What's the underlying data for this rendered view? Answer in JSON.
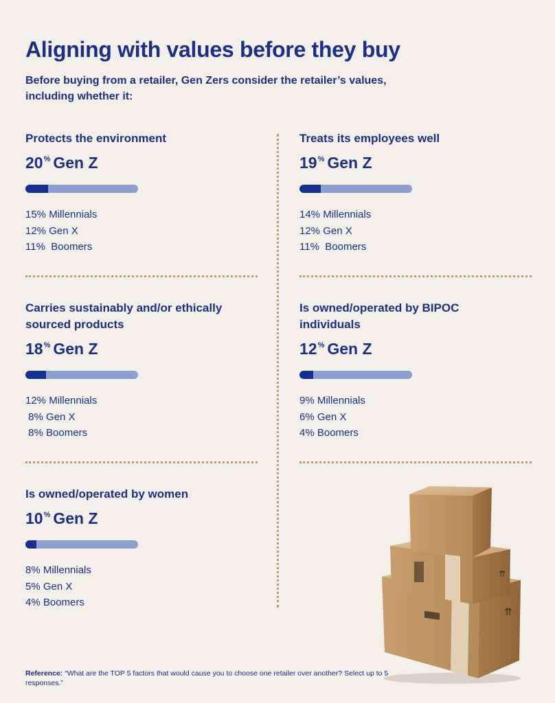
{
  "title": "Aligning with values before they buy",
  "subtitle": "Before buying from a retailer, Gen Zers consider the retailer’s values, including whether it:",
  "reference": {
    "label": "Reference:",
    "text": "“What are the TOP 5 factors that would cause you to choose one retailer over another? Select up to 5 responses.”"
  },
  "colors": {
    "text": "#1b2f87",
    "bar_fill": "#142f8c",
    "bar_track": "#8c9fcf",
    "dots": "#c49a74",
    "background": "#f3efea"
  },
  "chart_data": {
    "type": "bar",
    "title": "Aligning with values before they buy",
    "groups": [
      "Gen Z",
      "Millennials",
      "Gen X",
      "Boomers"
    ],
    "categories": [
      {
        "label": "Protects the environment",
        "genz_value": "20",
        "genz_unit": "%",
        "genz_label": "Gen Z",
        "values": {
          "Gen Z": 20,
          "Millennials": 15,
          "Gen X": 12,
          "Boomers": 11
        },
        "others": [
          {
            "pct": "15%",
            "name": "Millennials"
          },
          {
            "pct": "12%",
            "name": "Gen X"
          },
          {
            "pct": "11%",
            "name": "Boomers"
          }
        ]
      },
      {
        "label": "Treats its employees well",
        "genz_value": "19",
        "genz_unit": "%",
        "genz_label": "Gen Z",
        "values": {
          "Gen Z": 19,
          "Millennials": 14,
          "Gen X": 12,
          "Boomers": 11
        },
        "others": [
          {
            "pct": "14%",
            "name": "Millennials"
          },
          {
            "pct": "12%",
            "name": "Gen X"
          },
          {
            "pct": "11%",
            "name": "Boomers"
          }
        ]
      },
      {
        "label": "Carries sustainably and/or ethically sourced products",
        "genz_value": "18",
        "genz_unit": "%",
        "genz_label": "Gen Z",
        "values": {
          "Gen Z": 18,
          "Millennials": 12,
          "Gen X": 8,
          "Boomers": 8
        },
        "others": [
          {
            "pct": "12%",
            "name": "Millennials"
          },
          {
            "pct": " 8%",
            "name": "Gen X"
          },
          {
            "pct": " 8%",
            "name": "Boomers"
          }
        ]
      },
      {
        "label": "Is owned/operated by BIPOC individuals",
        "genz_value": "12",
        "genz_unit": "%",
        "genz_label": "Gen Z",
        "values": {
          "Gen Z": 12,
          "Millennials": 9,
          "Gen X": 6,
          "Boomers": 4
        },
        "others": [
          {
            "pct": "9%",
            "name": "Millennials"
          },
          {
            "pct": "6%",
            "name": "Gen X"
          },
          {
            "pct": "4%",
            "name": "Boomers"
          }
        ]
      },
      {
        "label": "Is owned/operated by women",
        "genz_value": "10",
        "genz_unit": "%",
        "genz_label": "Gen Z",
        "values": {
          "Gen Z": 10,
          "Millennials": 8,
          "Gen X": 5,
          "Boomers": 4
        },
        "others": [
          {
            "pct": "8%",
            "name": "Millennials"
          },
          {
            "pct": "5%",
            "name": "Gen X"
          },
          {
            "pct": "4%",
            "name": "Boomers"
          }
        ]
      }
    ]
  }
}
